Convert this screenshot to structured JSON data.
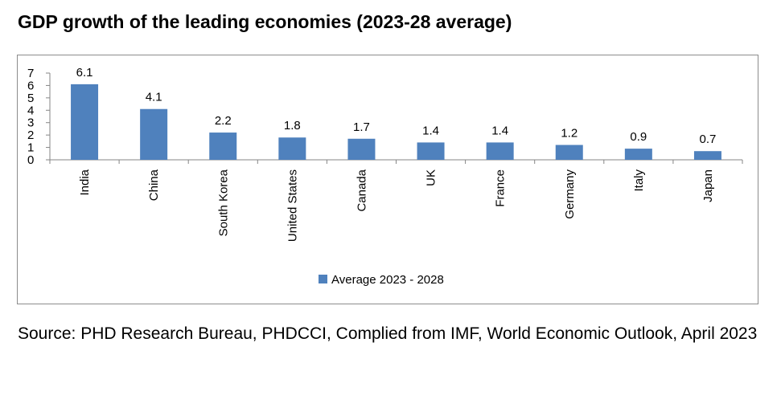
{
  "title": "GDP growth of the leading economies (2023-28 average)",
  "source": "Source: PHD Research Bureau, PHDCCI, Complied from IMF, World Economic Outlook, April 2023",
  "colors": {
    "bar": "#4f81bd",
    "axis": "#868686",
    "frame": "#8c8c8c"
  },
  "chart_data": {
    "type": "bar",
    "title": "",
    "xlabel": "",
    "ylabel": "",
    "categories": [
      "India",
      "China",
      "South Korea",
      "United States",
      "Canada",
      "UK",
      "France",
      "Germany",
      "Italy",
      "Japan"
    ],
    "series": [
      {
        "name": "Average 2023 - 2028",
        "values": [
          6.1,
          4.1,
          2.2,
          1.8,
          1.7,
          1.4,
          1.4,
          1.2,
          0.9,
          0.7
        ]
      }
    ],
    "ylim": [
      0,
      7
    ],
    "yticks": [
      "0",
      "1",
      "2",
      "3",
      "4",
      "5",
      "6",
      "7"
    ],
    "data_labels": [
      "6.1",
      "4.1",
      "2.2",
      "1.8",
      "1.7",
      "1.4",
      "1.4",
      "1.2",
      "0.9",
      "0.7"
    ],
    "grid": false,
    "legend_position": "bottom"
  }
}
